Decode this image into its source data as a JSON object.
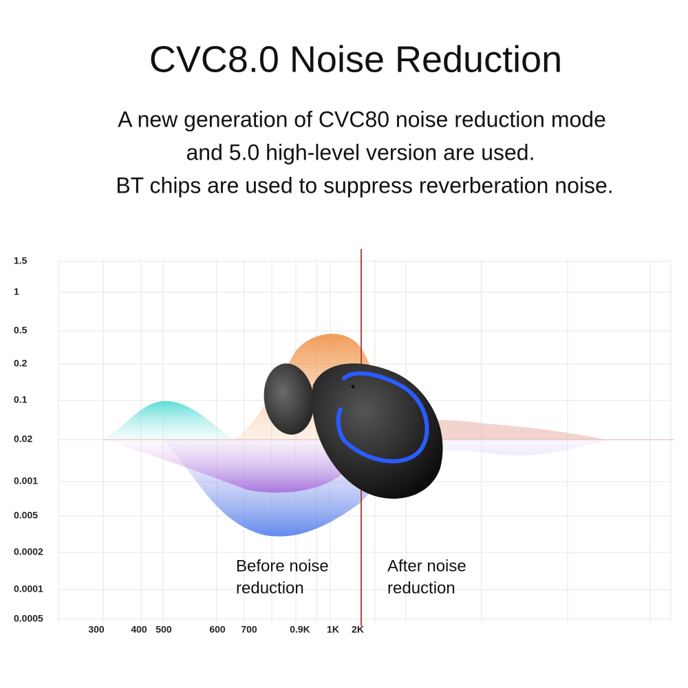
{
  "title": "CVC8.0 Noise Reduction",
  "description": [
    "A new generation of CVC80 noise reduction mode",
    "and 5.0 high-level version are used.",
    "BT chips are used to suppress reverberation noise."
  ],
  "graph": {
    "y_labels": [
      "1.5",
      "1",
      "0.5",
      "0.2",
      "0.1",
      "0.02",
      "0.001",
      "0.005",
      "0.0002",
      "0.0001",
      "0.0005"
    ],
    "x_labels": [
      "300",
      "400",
      "500",
      "600",
      "700",
      "0.9K",
      "1K",
      "2K"
    ],
    "before": [
      "Before noise",
      "reduction"
    ],
    "after": [
      "After noise",
      "reduction"
    ]
  }
}
